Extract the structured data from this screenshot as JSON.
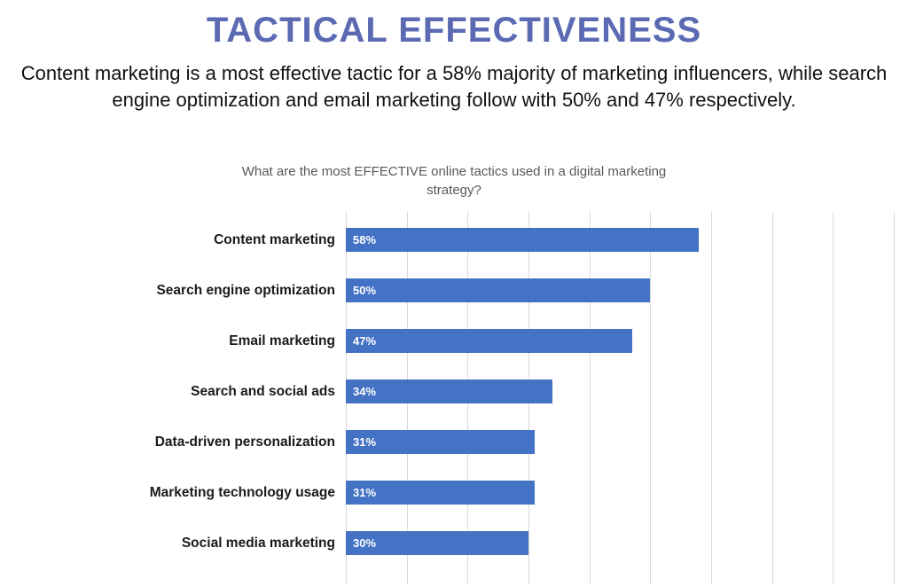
{
  "header": {
    "title": "TACTICAL EFFECTIVENESS",
    "subtitle": "Content marketing is a most effective tactic for a 58% majority of marketing influencers, while search engine optimization and email marketing follow with 50% and 47% respectively."
  },
  "chart_data": {
    "type": "bar",
    "orientation": "horizontal",
    "title": "What are the most EFFECTIVE online tactics used in a digital marketing strategy?",
    "categories": [
      "Content marketing",
      "Search engine optimization",
      "Email marketing",
      "Search and social ads",
      "Data-driven personalization",
      "Marketing technology usage",
      "Social media marketing"
    ],
    "values": [
      58,
      50,
      47,
      34,
      31,
      31,
      30
    ],
    "value_labels": [
      "58%",
      "50%",
      "47%",
      "34%",
      "31%",
      "31%",
      "30%"
    ],
    "xlim": [
      0,
      90
    ],
    "gridline_interval": 10,
    "grid": true,
    "legend": "none",
    "bar_color": "#4472C4",
    "value_label_color": "#ffffff"
  },
  "colors": {
    "title": "#5b6ab3",
    "subtitle": "#111111",
    "chart_title": "#595959",
    "gridline": "#d9d9d9"
  }
}
